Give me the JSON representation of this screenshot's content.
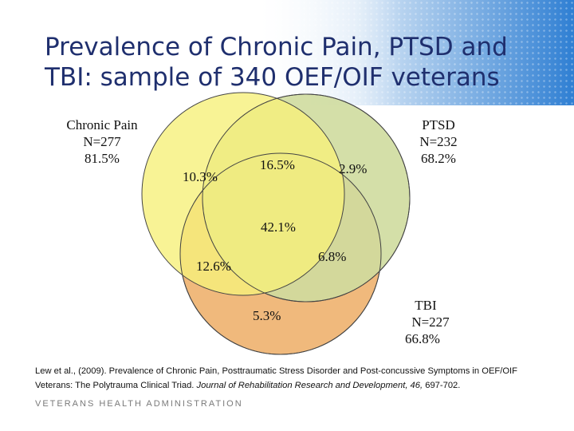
{
  "title": {
    "line1": "Prevalence of Chronic Pain, PTSD and",
    "line2": "TBI: sample of 340 OEF/OIF veterans"
  },
  "venn": {
    "sets": [
      {
        "name": "Chronic Pain",
        "n": "N=277",
        "pct": "81.5%",
        "color": "#f6f07a"
      },
      {
        "name": "PTSD",
        "n": "N=232",
        "pct": "68.2%",
        "color": "#cfdc9e"
      },
      {
        "name": "TBI",
        "n": "N=227",
        "pct": "66.8%",
        "color": "#f0b97c"
      }
    ],
    "regions": {
      "pain_only": "10.3%",
      "pain_ptsd": "16.5%",
      "ptsd_only": "2.9%",
      "all_three": "42.1%",
      "pain_tbi": "12.6%",
      "ptsd_tbi": "6.8%",
      "tbi_only": "5.3%"
    }
  },
  "citation": {
    "text_before": "Lew et al., (2009). Prevalence of Chronic Pain, Posttraumatic Stress Disorder and Post-concussive Symptoms in OEF/OIF Veterans: The Polytrauma Clinical Triad. ",
    "journal": "Journal of Rehabilitation Research and Development, 46,",
    "text_after": " 697-702."
  },
  "footer": "VETERANS HEALTH ADMINISTRATION"
}
